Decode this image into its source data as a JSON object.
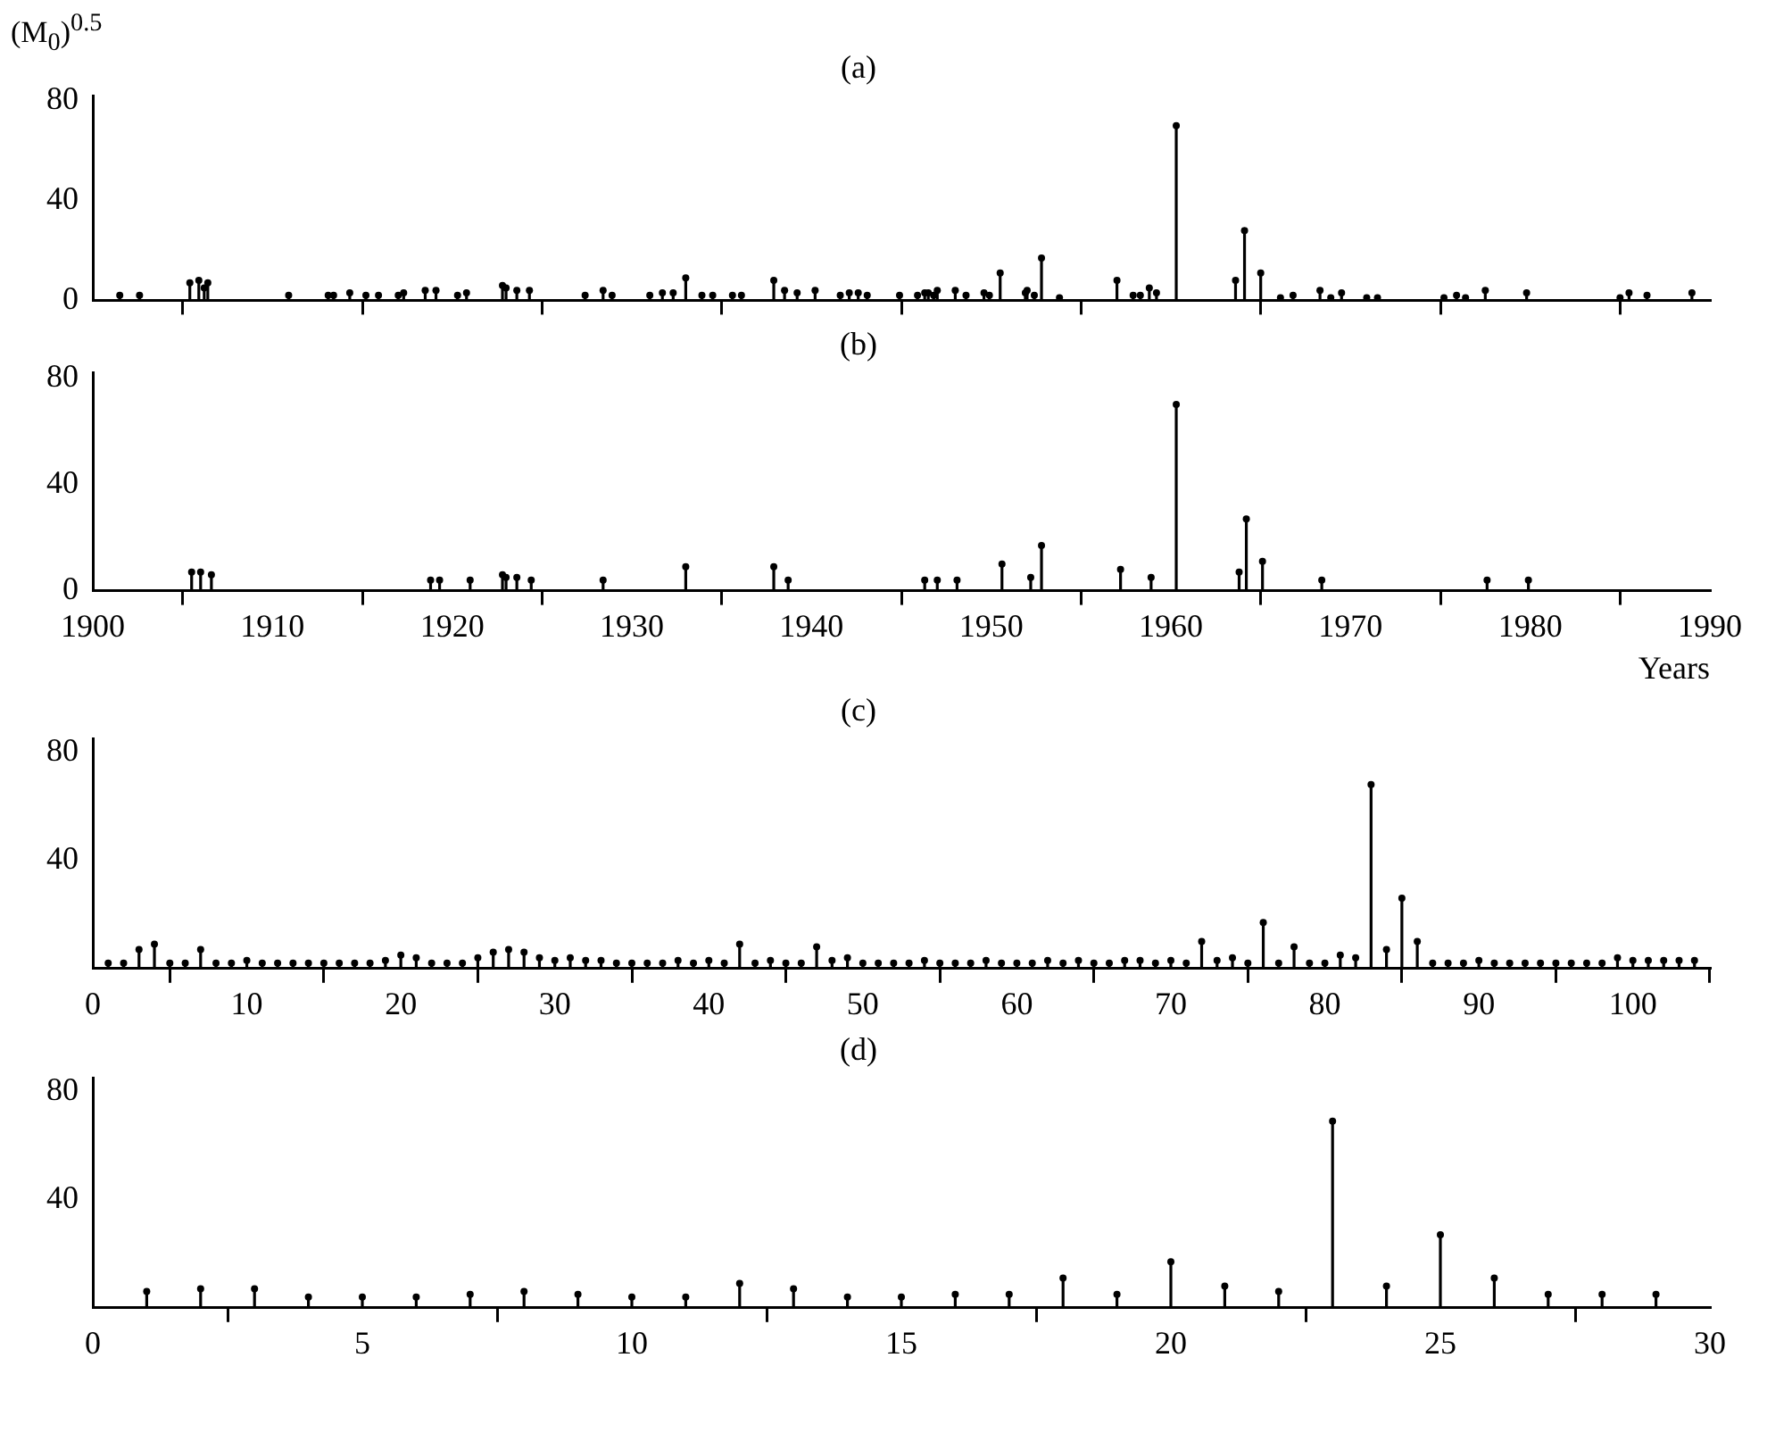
{
  "chart_data": [
    {
      "type": "lollipop",
      "marker": "circle",
      "title": "(a)",
      "ylabel": "(M$_{0}$)$^{0.5}$",
      "color": "#000000",
      "tick_labels": "y",
      "x": [
        1901.5,
        1902.6,
        1905.4,
        1905.9,
        1906.2,
        1906.4,
        1910.9,
        1913.1,
        1913.4,
        1914.3,
        1915.2,
        1915.9,
        1917,
        1917.3,
        1918.5,
        1919.1,
        1920.3,
        1920.8,
        1922.8,
        1923,
        1923.6,
        1924.3,
        1927.4,
        1928.4,
        1928.9,
        1931,
        1931.7,
        1932.3,
        1933,
        1933.9,
        1934.5,
        1935.6,
        1936.1,
        1937.9,
        1938.5,
        1939.2,
        1940.2,
        1941.6,
        1942.1,
        1942.6,
        1943.1,
        1944.9,
        1945.9,
        1946.3,
        1946.5,
        1946.8,
        1947,
        1948,
        1948.6,
        1949.6,
        1949.9,
        1950.5,
        1951.9,
        1952,
        1952.4,
        1952.8,
        1953.8,
        1957,
        1957.9,
        1958.3,
        1958.8,
        1959.2,
        1960.3,
        1963.6,
        1964.1,
        1965,
        1966.1,
        1966.8,
        1968.3,
        1968.9,
        1969.5,
        1970.9,
        1971.5,
        1975.2,
        1975.9,
        1976.4,
        1977.5,
        1979.8,
        1985,
        1985.5,
        1986.5,
        1989
      ],
      "values": [
        2,
        2,
        7,
        8,
        5,
        7,
        2,
        2,
        2,
        3,
        2,
        2,
        2,
        3,
        4,
        4,
        2,
        3,
        6,
        5,
        4,
        4,
        2,
        4,
        2,
        2,
        3,
        3,
        9,
        2,
        2,
        2,
        2,
        8,
        4,
        3,
        4,
        2,
        3,
        3,
        2,
        2,
        2,
        3,
        3,
        2,
        4,
        4,
        2,
        3,
        2,
        11,
        3,
        4,
        2,
        17,
        1,
        8,
        2,
        2,
        5,
        3,
        70,
        8,
        28,
        11,
        1,
        2,
        4,
        1,
        3,
        1,
        1,
        1,
        2,
        1,
        4,
        3,
        1,
        3,
        2,
        3
      ],
      "xlim": [
        1900,
        1990
      ],
      "xticks": [
        1900,
        1910,
        1920,
        1930,
        1940,
        1950,
        1960,
        1970,
        1980,
        1990
      ],
      "ylim": [
        0,
        82
      ],
      "yticks": [
        0,
        40,
        80
      ]
    },
    {
      "type": "lollipop",
      "marker": "circle",
      "title": "(b)",
      "xlabel": "Years",
      "color": "#000000",
      "x": [
        1905.5,
        1906,
        1906.6,
        1918.8,
        1919.3,
        1921,
        1922.8,
        1923,
        1923.6,
        1924.4,
        1928.4,
        1933,
        1937.9,
        1938.7,
        1946.3,
        1947,
        1948.1,
        1950.6,
        1952.2,
        1952.8,
        1957.2,
        1958.9,
        1960.3,
        1963.8,
        1964.2,
        1965.1,
        1968.4,
        1977.6,
        1979.9
      ],
      "values": [
        7,
        7,
        6,
        4,
        4,
        4,
        6,
        5,
        5,
        4,
        4,
        9,
        9,
        4,
        4,
        4,
        4,
        10,
        5,
        17,
        8,
        5,
        70,
        7,
        27,
        11,
        4,
        4,
        4
      ],
      "xlim": [
        1900,
        1990
      ],
      "xticks": [
        1900,
        1910,
        1920,
        1930,
        1940,
        1950,
        1960,
        1970,
        1980,
        1990
      ],
      "ylim": [
        0,
        82
      ],
      "yticks": [
        0,
        40,
        80
      ]
    },
    {
      "type": "lollipop",
      "marker": "circle",
      "title": "(c)",
      "color": "#000000",
      "x": [
        1,
        2,
        3,
        4,
        5,
        6,
        7,
        8,
        9,
        10,
        11,
        12,
        13,
        14,
        15,
        16,
        17,
        18,
        19,
        20,
        21,
        22,
        23,
        24,
        25,
        26,
        27,
        28,
        29,
        30,
        31,
        32,
        33,
        34,
        35,
        36,
        37,
        38,
        39,
        40,
        41,
        42,
        43,
        44,
        45,
        46,
        47,
        48,
        49,
        50,
        51,
        52,
        53,
        54,
        55,
        56,
        57,
        58,
        59,
        60,
        61,
        62,
        63,
        64,
        65,
        66,
        67,
        68,
        69,
        70,
        71,
        72,
        73,
        74,
        75,
        76,
        77,
        78,
        79,
        80,
        81,
        82,
        83,
        84,
        85,
        86,
        87,
        88,
        89,
        90,
        91,
        92,
        93,
        94,
        95,
        96,
        97,
        98,
        99,
        100,
        101,
        102,
        103,
        104
      ],
      "values": [
        2,
        2,
        7,
        9,
        2,
        2,
        7,
        2,
        2,
        3,
        2,
        2,
        2,
        2,
        2,
        2,
        2,
        2,
        3,
        5,
        4,
        2,
        2,
        2,
        4,
        6,
        7,
        6,
        4,
        3,
        4,
        3,
        3,
        2,
        2,
        2,
        2,
        3,
        2,
        3,
        2,
        9,
        2,
        3,
        2,
        2,
        8,
        3,
        4,
        2,
        2,
        2,
        2,
        3,
        2,
        2,
        2,
        3,
        2,
        2,
        2,
        3,
        2,
        3,
        2,
        2,
        3,
        3,
        2,
        3,
        2,
        10,
        3,
        4,
        2,
        17,
        2,
        8,
        2,
        2,
        5,
        4,
        68,
        7,
        26,
        10,
        2,
        2,
        2,
        3,
        2,
        2,
        2,
        2,
        2,
        2,
        2,
        2,
        4,
        3,
        3,
        3,
        3,
        3
      ],
      "xlim": [
        0,
        105
      ],
      "xticks": [
        0,
        10,
        20,
        30,
        40,
        50,
        60,
        70,
        80,
        90,
        100
      ],
      "ylim": [
        0,
        85
      ],
      "yticks": [
        40,
        80
      ]
    },
    {
      "type": "lollipop",
      "marker": "circle",
      "title": "(d)",
      "color": "#000000",
      "x": [
        1,
        2,
        3,
        4,
        5,
        6,
        7,
        8,
        9,
        10,
        11,
        12,
        13,
        14,
        15,
        16,
        17,
        18,
        19,
        20,
        21,
        22,
        23,
        24,
        25,
        26,
        27,
        28,
        29
      ],
      "values": [
        6,
        7,
        7,
        4,
        4,
        4,
        5,
        6,
        5,
        4,
        4,
        9,
        7,
        4,
        4,
        5,
        5,
        11,
        5,
        17,
        8,
        6,
        69,
        8,
        27,
        11,
        5,
        5,
        5
      ],
      "xlim": [
        0,
        30
      ],
      "xticks": [
        0,
        5,
        10,
        15,
        20,
        25,
        30
      ],
      "ylim": [
        0,
        85
      ],
      "yticks": [
        40,
        80
      ]
    }
  ]
}
